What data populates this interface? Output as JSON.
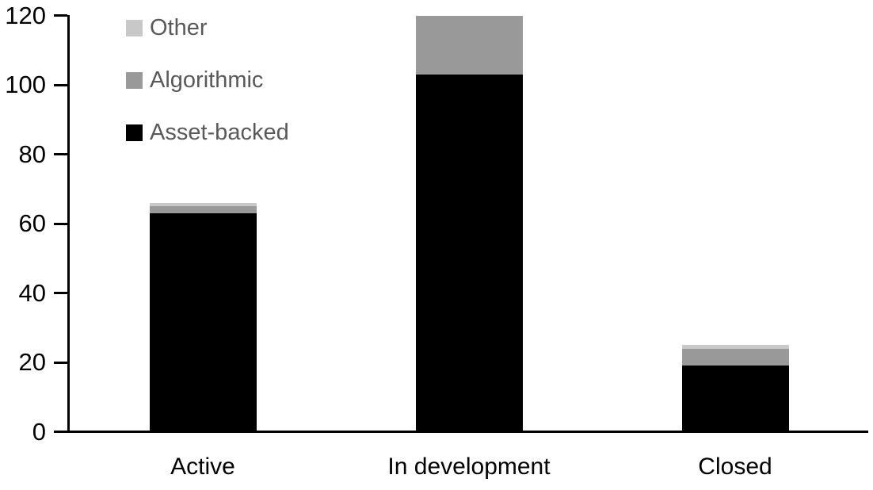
{
  "chart_data": {
    "type": "bar",
    "stacked": true,
    "title": "",
    "xlabel": "",
    "ylabel": "",
    "categories": [
      "Active",
      "In development",
      "Closed"
    ],
    "series": [
      {
        "name": "Asset-backed",
        "color": "#000000",
        "values": [
          63,
          103,
          19
        ]
      },
      {
        "name": "Algorithmic",
        "color": "#999999",
        "values": [
          2,
          17,
          5
        ]
      },
      {
        "name": "Other",
        "color": "#c8c8c8",
        "values": [
          1,
          0,
          1
        ]
      }
    ],
    "totals": [
      66,
      120,
      25
    ],
    "legend": {
      "position": "top-left",
      "order": [
        "Other",
        "Algorithmic",
        "Asset-backed"
      ],
      "text_color": "#595959"
    },
    "axes": {
      "ylim": [
        0,
        120
      ],
      "yticks": [
        0,
        20,
        40,
        60,
        80,
        100,
        120
      ],
      "grid": false,
      "axis_color": "#000000",
      "tick_label_color": "#000000"
    }
  }
}
